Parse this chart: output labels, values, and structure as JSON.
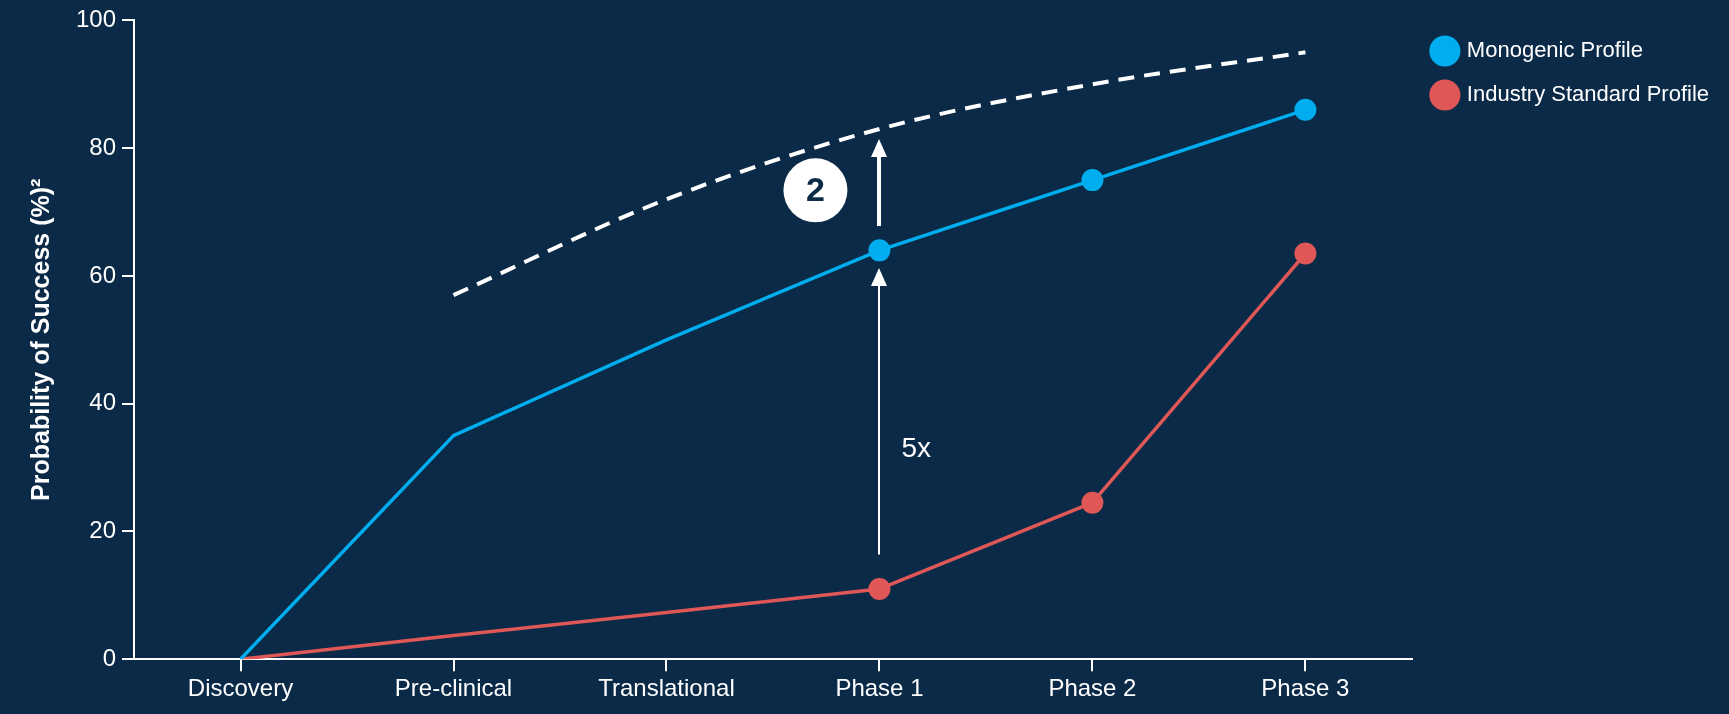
{
  "chart_data": {
    "type": "line",
    "ylabel": "Probability of Success (%)²",
    "categories": [
      "Discovery",
      "Pre-clinical",
      "Translational",
      "Phase 1",
      "Phase 2",
      "Phase 3"
    ],
    "series": [
      {
        "name": "Monogenic Profile",
        "color": "#00aeef",
        "marker": "circle",
        "values": [
          null,
          null,
          null,
          64,
          75,
          86
        ]
      },
      {
        "name": "Industry Standard Profile",
        "color": "#e05757",
        "marker": "circle",
        "values": [
          null,
          null,
          null,
          11,
          24.5,
          63.5
        ]
      },
      {
        "color": "#00aeef",
        "marker": "none",
        "values": [
          0,
          35,
          50,
          64,
          null,
          null
        ]
      },
      {
        "color": "#e05757",
        "marker": "none",
        "values": [
          0,
          3.7,
          7.3,
          11,
          null,
          null
        ]
      },
      {
        "color": "#ffffff",
        "marker": "none",
        "line_style": "dashed",
        "values": [
          null,
          57,
          72,
          83,
          90,
          95
        ]
      }
    ],
    "ylim": [
      0,
      100
    ],
    "yticks": [
      0,
      20,
      40,
      60,
      80,
      100
    ],
    "legend": "top right",
    "annotations": [
      "5x",
      "2"
    ]
  }
}
